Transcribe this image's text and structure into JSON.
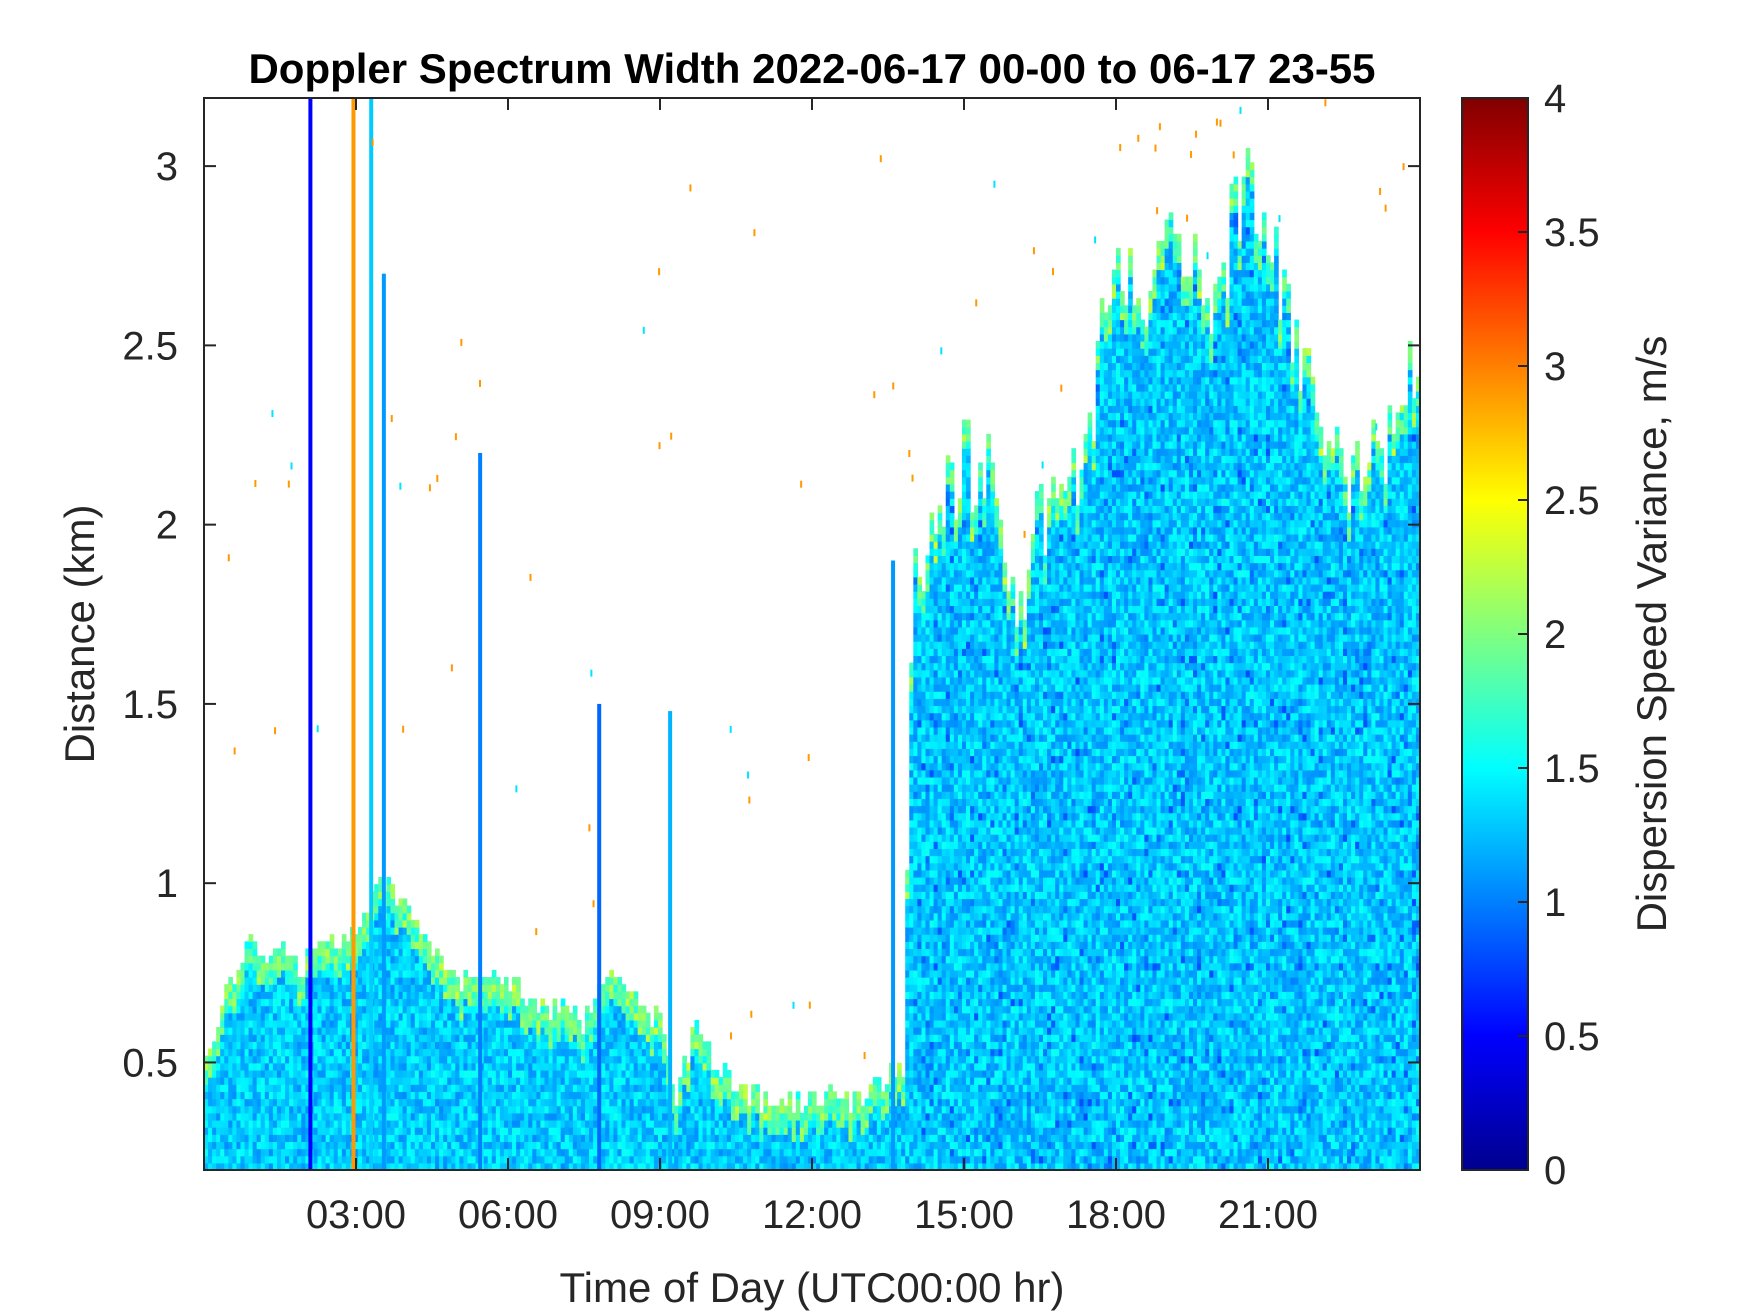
{
  "chart_data": {
    "type": "heatmap",
    "title": "Doppler Spectrum Width 2022-06-17 00-00 to 06-17 23-55",
    "xlabel": "Time of Day (UTC00:00 hr)",
    "ylabel": "Distance (km)",
    "xlim": [
      0,
      24
    ],
    "ylim": [
      0.2,
      3.19
    ],
    "x_ticks": [
      3,
      6,
      9,
      12,
      15,
      18,
      21
    ],
    "x_tick_labels": [
      "03:00",
      "06:00",
      "09:00",
      "12:00",
      "15:00",
      "18:00",
      "21:00"
    ],
    "y_ticks": [
      0.5,
      1,
      1.5,
      2,
      2.5,
      3
    ],
    "y_tick_labels": [
      "0.5",
      "1",
      "1.5",
      "2",
      "2.5",
      "3"
    ],
    "grid": false,
    "colormap": "jet",
    "colorbar": {
      "label": "Dispersion Speed Variance, m/s",
      "range": [
        0,
        4
      ],
      "ticks": [
        0,
        0.5,
        1,
        1.5,
        2,
        2.5,
        3,
        3.5,
        4
      ],
      "tick_labels": [
        "0",
        "0.5",
        "1",
        "1.5",
        "2",
        "2.5",
        "3",
        "3.5",
        "4"
      ]
    },
    "typical_value": 1.3,
    "echo_top_profile": {
      "description": "approximate maximum height (km) of valid returns vs time of day (hr)",
      "time_hr": [
        0,
        0.8,
        1.5,
        2.0,
        2.5,
        2.8,
        3.5,
        4.0,
        5.0,
        6.0,
        7.0,
        7.5,
        8.0,
        8.5,
        9.0,
        9.3,
        9.7,
        10.3,
        11.0,
        12.0,
        13.0,
        13.8,
        14.0,
        14.5,
        15.0,
        15.5,
        16.0,
        16.5,
        17.0,
        17.5,
        18.0,
        18.5,
        19.0,
        19.5,
        20.0,
        20.5,
        21.0,
        21.5,
        22.0,
        22.5,
        23.0,
        23.5,
        24.0
      ],
      "top_km": [
        0.5,
        0.82,
        0.8,
        0.78,
        0.85,
        0.85,
        1.0,
        0.95,
        0.72,
        0.72,
        0.65,
        0.6,
        0.8,
        0.68,
        0.62,
        0.4,
        0.6,
        0.45,
        0.4,
        0.4,
        0.4,
        0.48,
        1.9,
        2.05,
        2.2,
        2.1,
        1.8,
        2.0,
        2.1,
        2.3,
        2.8,
        2.6,
        2.95,
        2.7,
        2.6,
        2.95,
        2.8,
        2.55,
        2.35,
        2.2,
        2.15,
        2.3,
        2.5
      ]
    },
    "vertical_streaks": [
      {
        "time_hr": 2.1,
        "top_km": 3.19,
        "value": 0.5
      },
      {
        "time_hr": 2.95,
        "top_km": 3.19,
        "value": 2.9
      },
      {
        "time_hr": 3.3,
        "top_km": 3.19,
        "value": 1.3
      },
      {
        "time_hr": 3.55,
        "top_km": 2.7,
        "value": 1.1
      },
      {
        "time_hr": 5.45,
        "top_km": 2.2,
        "value": 1.0
      },
      {
        "time_hr": 7.8,
        "top_km": 1.5,
        "value": 0.9
      },
      {
        "time_hr": 9.2,
        "top_km": 1.48,
        "value": 1.2
      },
      {
        "time_hr": 13.6,
        "top_km": 1.9,
        "value": 1.1
      }
    ]
  }
}
